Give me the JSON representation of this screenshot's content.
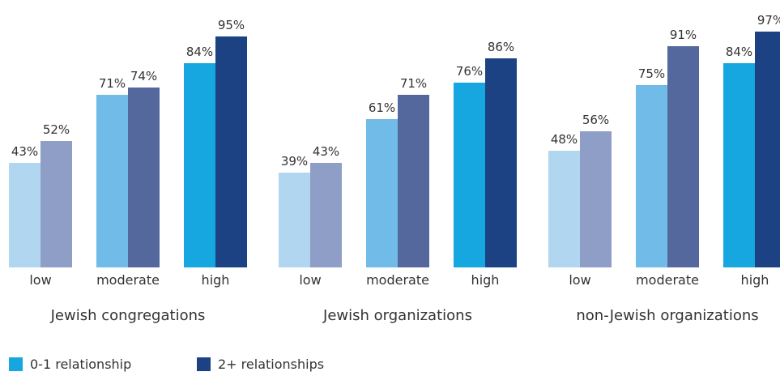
{
  "chart_data": {
    "type": "bar",
    "ylim": [
      0,
      100
    ],
    "groups": [
      {
        "name": "Jewish congregations",
        "categories": [
          "low",
          "moderate",
          "high"
        ],
        "series": [
          {
            "name": "0-1 relationship",
            "values": [
              43,
              71,
              84
            ]
          },
          {
            "name": "2+ relationships",
            "values": [
              52,
              74,
              95
            ]
          }
        ]
      },
      {
        "name": "Jewish organizations",
        "categories": [
          "low",
          "moderate",
          "high"
        ],
        "series": [
          {
            "name": "0-1 relationship",
            "values": [
              39,
              61,
              76
            ]
          },
          {
            "name": "2+ relationships",
            "values": [
              43,
              71,
              86
            ]
          }
        ]
      },
      {
        "name": "non-Jewish organizations",
        "categories": [
          "low",
          "moderate",
          "high"
        ],
        "series": [
          {
            "name": "0-1 relationship",
            "values": [
              48,
              75,
              84
            ]
          },
          {
            "name": "2+ relationships",
            "values": [
              56,
              91,
              97
            ]
          }
        ]
      }
    ],
    "value_suffix": "%",
    "colors": {
      "0-1 relationship": [
        "#b0d6f0",
        "#70bbe8",
        "#16a6e0"
      ],
      "2+ relationships": [
        "#8e9ec6",
        "#55689d",
        "#1c4283"
      ]
    },
    "legend_position": "bottom-left",
    "grid": false
  },
  "legend": [
    {
      "label": "0-1 relationship",
      "color": "#16a6e0"
    },
    {
      "label": "2+ relationships",
      "color": "#1c4283"
    }
  ]
}
